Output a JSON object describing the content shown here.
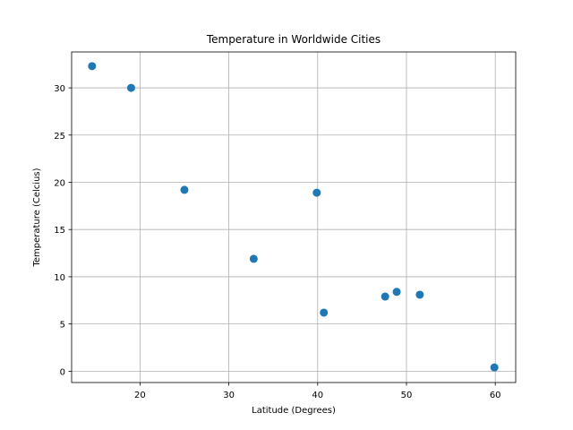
{
  "chart_data": {
    "type": "scatter",
    "title": "Temperature in Worldwide Cities",
    "xlabel": "Latitude (Degrees)",
    "ylabel": "Temperature (Celcius)",
    "xlim": [
      12.3,
      62.3
    ],
    "ylim": [
      -1.2,
      33.8
    ],
    "xticks": [
      20,
      30,
      40,
      50,
      60
    ],
    "yticks": [
      0,
      5,
      10,
      15,
      20,
      25,
      30
    ],
    "grid": true,
    "legend": "none",
    "marker_color": "#1f77b4",
    "x": [
      14.6,
      19.0,
      25.0,
      32.8,
      39.9,
      40.7,
      47.6,
      48.9,
      51.5,
      59.9
    ],
    "y": [
      32.3,
      30.0,
      19.2,
      11.9,
      18.9,
      6.2,
      7.9,
      8.4,
      8.1,
      0.4
    ]
  }
}
